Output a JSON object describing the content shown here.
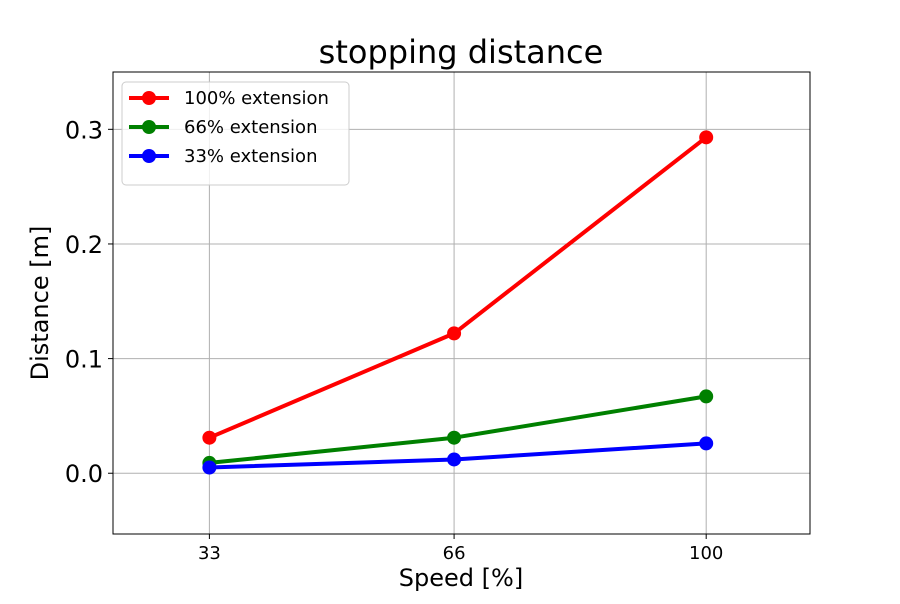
{
  "chart_data": {
    "type": "line",
    "title": "stopping distance",
    "xlabel": "Speed [%]",
    "ylabel": "Distance [m]",
    "x": [
      33,
      66,
      100
    ],
    "x_tick_labels": [
      "33",
      "66",
      "100"
    ],
    "xlim": [
      20,
      114
    ],
    "ylim": [
      -0.053,
      0.35
    ],
    "y_ticks": [
      0.0,
      0.1,
      0.2,
      0.3
    ],
    "y_tick_labels": [
      "0.0",
      "0.1",
      "0.2",
      "0.3"
    ],
    "grid": true,
    "legend_position": "top-left",
    "series": [
      {
        "name": "100% extension",
        "color": "#ff0000",
        "values": [
          0.031,
          0.122,
          0.293
        ]
      },
      {
        "name": "66% extension",
        "color": "#008000",
        "values": [
          0.009,
          0.031,
          0.067
        ]
      },
      {
        "name": "33% extension",
        "color": "#0000ff",
        "values": [
          0.005,
          0.012,
          0.026
        ]
      }
    ]
  }
}
